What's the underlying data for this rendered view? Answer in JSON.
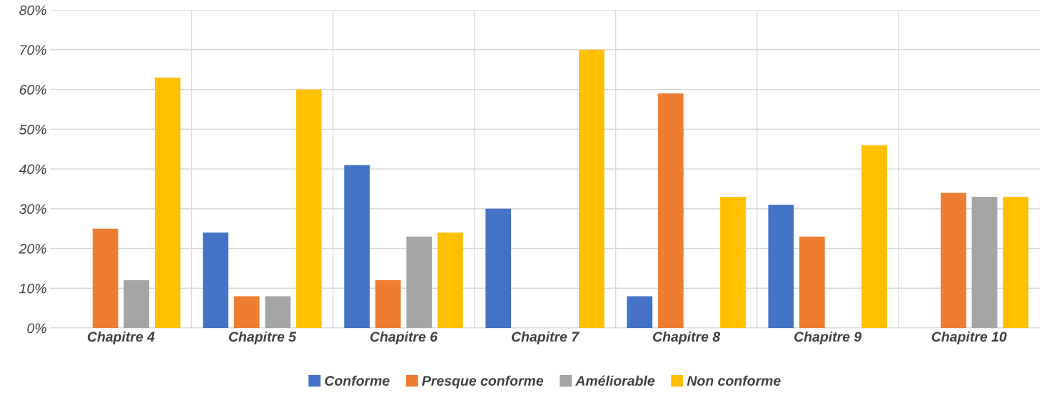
{
  "chart_data": {
    "type": "bar",
    "categories": [
      "Chapitre 4",
      "Chapitre 5",
      "Chapitre 6",
      "Chapitre 7",
      "Chapitre 8",
      "Chapitre 9",
      "Chapitre 10"
    ],
    "series": [
      {
        "name": "Conforme",
        "color": "#4472c4",
        "values": [
          0,
          24,
          41,
          30,
          8,
          31,
          0
        ]
      },
      {
        "name": "Presque conforme",
        "color": "#ed7d31",
        "values": [
          25,
          8,
          12,
          0,
          59,
          23,
          34
        ]
      },
      {
        "name": "Améliorable",
        "color": "#a5a5a5",
        "values": [
          12,
          8,
          23,
          0,
          0,
          0,
          33
        ]
      },
      {
        "name": "Non conforme",
        "color": "#ffc000",
        "values": [
          63,
          60,
          24,
          70,
          33,
          46,
          33
        ]
      }
    ],
    "ylim": [
      0,
      80
    ],
    "yticks": [
      {
        "value": 0,
        "label": "0%"
      },
      {
        "value": 10,
        "label": "10%"
      },
      {
        "value": 20,
        "label": "20%"
      },
      {
        "value": 30,
        "label": "30%"
      },
      {
        "value": 40,
        "label": "40%"
      },
      {
        "value": 50,
        "label": "50%"
      },
      {
        "value": 60,
        "label": "60%"
      },
      {
        "value": 70,
        "label": "70%"
      },
      {
        "value": 80,
        "label": "80%"
      }
    ],
    "grid": "y",
    "legend": "bottom"
  }
}
